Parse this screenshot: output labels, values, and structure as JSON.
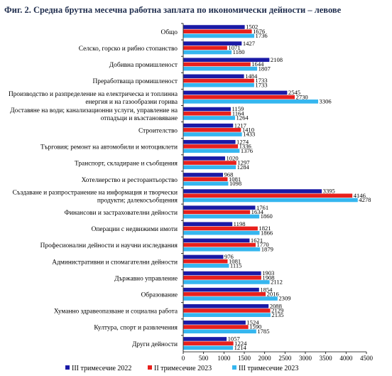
{
  "chart_data": {
    "type": "bar",
    "orientation": "horizontal",
    "title": "Фиг. 2. Средна брутна месечна работна заплата по икономически дейности – левове",
    "categories": [
      [
        "Общо"
      ],
      [
        "Селско, горско и рибно стопанство"
      ],
      [
        "Добивна промишленост"
      ],
      [
        "Преработваща промишленост"
      ],
      [
        "Производство и разпределение на електрическа и топлинна",
        "енергия и на газообразни горива"
      ],
      [
        "Доставяне на води; канализационни услуги, управление на",
        "отпадъци и възстановяване"
      ],
      [
        "Строителство"
      ],
      [
        "Търговия; ремонт на автомобили и мотоциклети"
      ],
      [
        "Транспорт, складиране и съобщения"
      ],
      [
        "Хотелиерство и ресторантьорство"
      ],
      [
        "Създаване и разпространение на информация и творчески",
        "продукти; далекосъобщения"
      ],
      [
        "Финансови и застрахователни дейности"
      ],
      [
        "Операции с недвижими имоти"
      ],
      [
        "Професионални дейности и научни изследвания"
      ],
      [
        "Административни и спомагателни дейности"
      ],
      [
        "Държавно управление"
      ],
      [
        "Образование"
      ],
      [
        "Хуманно здравеопазване и социална работа"
      ],
      [
        "Култура, спорт и развлечения"
      ],
      [
        "Други дейности"
      ]
    ],
    "series": [
      {
        "name": "III тримесечие 2022",
        "color": "#1a1aa6",
        "values": [
          1502,
          1427,
          2108,
          1484,
          2545,
          1159,
          1217,
          1274,
          1020,
          968,
          3395,
          1761,
          1198,
          1621,
          976,
          1903,
          1854,
          2088,
          1524,
          1057
        ]
      },
      {
        "name": "II тримесечие 2023",
        "color": "#e8201c",
        "values": [
          1676,
          1071,
          1644,
          1733,
          2730,
          1164,
          1410,
          1336,
          1297,
          1081,
          4146,
          1634,
          1821,
          1770,
          1081,
          1908,
          2016,
          2129,
          1590,
          1224
        ]
      },
      {
        "name": "III тримесечие 2023",
        "color": "#35b6ef",
        "values": [
          1736,
          1180,
          1807,
          1733,
          3306,
          1264,
          1433,
          1376,
          1284,
          1098,
          4278,
          1860,
          1866,
          1879,
          1115,
          2112,
          2309,
          2135,
          1785,
          1214
        ]
      }
    ],
    "xlim": [
      0,
      4500
    ],
    "xticks": [
      0,
      500,
      1000,
      1500,
      2000,
      2500,
      3000,
      3500,
      4000,
      4500
    ],
    "grid": false,
    "legend_position": "bottom"
  }
}
